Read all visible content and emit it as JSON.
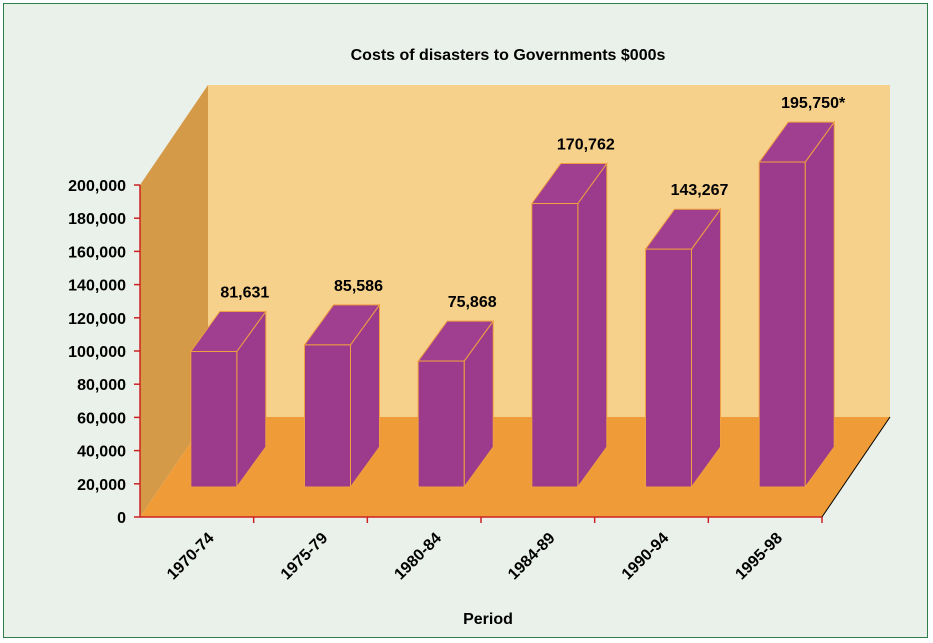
{
  "chart_data": {
    "type": "bar",
    "title": "Costs of disasters to Governments $000s",
    "xlabel": "Period",
    "ylabel": "",
    "categories": [
      "1970-74",
      "1975-79",
      "1980-84",
      "1984-89",
      "1990-94",
      "1995-98"
    ],
    "values": [
      81631,
      85586,
      75868,
      170762,
      143267,
      195750
    ],
    "data_labels": [
      "81,631",
      "85,586",
      "75,868",
      "170,762",
      "143,267",
      "195,750*"
    ],
    "ylim": [
      0,
      200000
    ],
    "yticks": [
      0,
      20000,
      40000,
      60000,
      80000,
      100000,
      120000,
      140000,
      160000,
      180000,
      200000
    ],
    "ytick_labels": [
      "0",
      "20,000",
      "40,000",
      "60,000",
      "80,000",
      "100,000",
      "120,000",
      "140,000",
      "160,000",
      "180,000",
      "200,000"
    ],
    "grid": false,
    "legend": "none",
    "colors": {
      "bar_front": "#9c3a8c",
      "bar_side": "#9c3a8c",
      "bar_top": "#a03f90",
      "bar_edge": "#f0a040",
      "back_wall": "#f6d18c",
      "side_wall": "#d59a48",
      "floor": "#ef9c38",
      "axis": "#cc2222",
      "background": "#eaf1ea",
      "border": "#2e7d4a"
    }
  }
}
